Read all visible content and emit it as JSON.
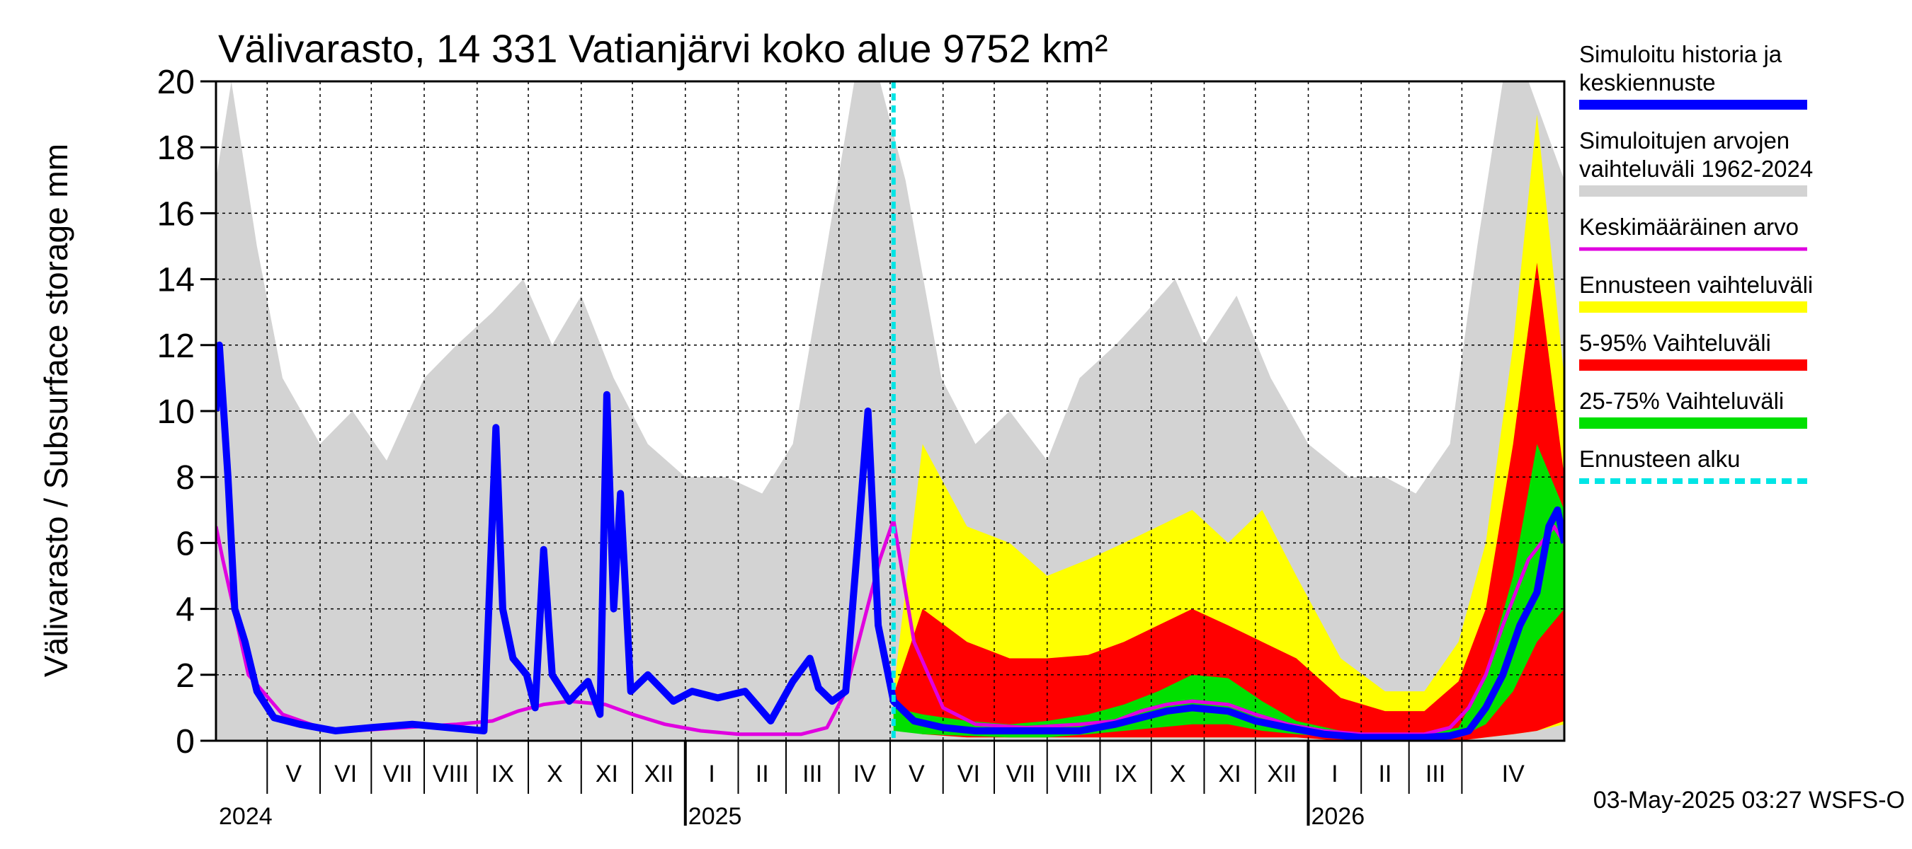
{
  "chart_data": {
    "type": "area",
    "title": "Välivarasto, 14 331 Vatianjärvi koko alue 9752 km²",
    "ylabel": "Välivarasto / Subsurface storage  mm",
    "xlabel": "",
    "ylim": [
      0,
      20
    ],
    "yticks": [
      "0",
      "2",
      "4",
      "6",
      "8",
      "10",
      "12",
      "14",
      "16",
      "18",
      "20"
    ],
    "xlim": [
      "2024-04-01",
      "2026-05-31"
    ],
    "grid": true,
    "legend_placement": "right",
    "forecast_start": "2025-05-03",
    "footer": "03-May-2025 03:27 WSFS-O",
    "months": [
      {
        "label": "V",
        "start": "2024-05-01"
      },
      {
        "label": "VI",
        "start": "2024-06-01"
      },
      {
        "label": "VII",
        "start": "2024-07-01"
      },
      {
        "label": "VIII",
        "start": "2024-08-01"
      },
      {
        "label": "IX",
        "start": "2024-09-01"
      },
      {
        "label": "X",
        "start": "2024-10-01"
      },
      {
        "label": "XI",
        "start": "2024-11-01"
      },
      {
        "label": "XII",
        "start": "2024-12-01"
      },
      {
        "label": "I",
        "start": "2025-01-01"
      },
      {
        "label": "II",
        "start": "2025-02-01"
      },
      {
        "label": "III",
        "start": "2025-03-01"
      },
      {
        "label": "IV",
        "start": "2025-04-01"
      },
      {
        "label": "V",
        "start": "2025-05-01"
      },
      {
        "label": "VI",
        "start": "2025-06-01"
      },
      {
        "label": "VII",
        "start": "2025-07-01"
      },
      {
        "label": "VIII",
        "start": "2025-08-01"
      },
      {
        "label": "IX",
        "start": "2025-09-01"
      },
      {
        "label": "X",
        "start": "2025-10-01"
      },
      {
        "label": "XI",
        "start": "2025-11-01"
      },
      {
        "label": "XII",
        "start": "2025-12-01"
      },
      {
        "label": "I",
        "start": "2026-01-01"
      },
      {
        "label": "II",
        "start": "2026-02-01"
      },
      {
        "label": "III",
        "start": "2026-03-01"
      },
      {
        "label": "IV",
        "start": "2026-04-01"
      }
    ],
    "years": [
      {
        "label": "2024",
        "start": "2024-04-01"
      },
      {
        "label": "2025",
        "start": "2025-01-01"
      },
      {
        "label": "2026",
        "start": "2026-01-01"
      }
    ],
    "legend": [
      {
        "label": "Simuloitu historia ja keskiennuste",
        "color": "#0000ff",
        "style": "line"
      },
      {
        "label": "Simuloitujen arvojen vaihteluväli 1962-2024",
        "color": "#d3d3d3",
        "style": "band"
      },
      {
        "label": "Keskimääräinen arvo",
        "color": "#e000e0",
        "style": "line"
      },
      {
        "label": "Ennusteen vaihteluväli",
        "color": "#ffff00",
        "style": "band"
      },
      {
        "label": "5-95% Vaihteluväli",
        "color": "#ff0000",
        "style": "band"
      },
      {
        "label": "25-75% Vaihteluväli",
        "color": "#00e000",
        "style": "band"
      },
      {
        "label": "Ennusteen alku",
        "color": "#00e5e5",
        "style": "dashed"
      }
    ],
    "series": [
      {
        "name": "Simuloitujen arvojen vaihteluväli 1962-2024",
        "color": "#d3d3d3",
        "x": [
          "2024-04-01",
          "2024-04-10",
          "2024-04-25",
          "2024-05-10",
          "2024-06-01",
          "2024-06-20",
          "2024-07-10",
          "2024-08-01",
          "2024-08-20",
          "2024-09-10",
          "2024-09-28",
          "2024-10-15",
          "2024-11-01",
          "2024-11-20",
          "2024-12-10",
          "2025-01-01",
          "2025-01-25",
          "2025-02-15",
          "2025-03-05",
          "2025-03-25",
          "2025-04-10",
          "2025-04-25",
          "2025-05-10",
          "2025-05-31",
          "2025-06-20",
          "2025-07-10",
          "2025-08-01",
          "2025-08-20",
          "2025-09-10",
          "2025-09-28",
          "2025-10-15",
          "2025-11-01",
          "2025-11-20",
          "2025-12-10",
          "2026-01-01",
          "2026-01-25",
          "2026-02-15",
          "2026-03-05",
          "2026-03-25",
          "2026-04-10",
          "2026-04-25",
          "2026-05-10",
          "2026-05-31"
        ],
        "lower": [
          0,
          0,
          0,
          0,
          0,
          0,
          0,
          0,
          0,
          0,
          0,
          0,
          0,
          0,
          0,
          0,
          0,
          0,
          0,
          0,
          0,
          0,
          0,
          0,
          0,
          0,
          0,
          0,
          0,
          0,
          0,
          0,
          0,
          0,
          0,
          0,
          0,
          0,
          0,
          0,
          0,
          0,
          0
        ],
        "upper": [
          17,
          20,
          15,
          11,
          9,
          10,
          8.5,
          11,
          12,
          13,
          14,
          12,
          13.5,
          11,
          9,
          8,
          8,
          7.5,
          9,
          15,
          20,
          20,
          17,
          11,
          9,
          10,
          8.5,
          11,
          12,
          13,
          14,
          12,
          13.5,
          11,
          9,
          8,
          8,
          7.5,
          9,
          15,
          20,
          20,
          17
        ]
      },
      {
        "name": "Ennusteen vaihteluväli",
        "color": "#ffff00",
        "x": [
          "2025-05-03",
          "2025-05-20",
          "2025-06-15",
          "2025-07-10",
          "2025-08-01",
          "2025-08-25",
          "2025-09-15",
          "2025-10-05",
          "2025-10-25",
          "2025-11-15",
          "2025-12-05",
          "2025-12-25",
          "2026-01-20",
          "2026-02-15",
          "2026-03-10",
          "2026-03-30",
          "2026-04-15",
          "2026-05-01",
          "2026-05-15",
          "2026-05-31"
        ],
        "lower": [
          0.4,
          0.2,
          0.1,
          0.1,
          0.1,
          0.1,
          0.1,
          0.1,
          0.1,
          0.1,
          0.1,
          0.1,
          0,
          0,
          0,
          0,
          0.1,
          0.2,
          0.3,
          0.5
        ],
        "upper": [
          1.5,
          9,
          6.5,
          6,
          5,
          5.5,
          6,
          6.5,
          7,
          6,
          7,
          5,
          2.5,
          1.5,
          1.5,
          3,
          6,
          12,
          19,
          11
        ]
      },
      {
        "name": "5-95% Vaihteluväli",
        "color": "#ff0000",
        "x": [
          "2025-05-03",
          "2025-05-20",
          "2025-06-15",
          "2025-07-10",
          "2025-08-01",
          "2025-08-25",
          "2025-09-15",
          "2025-10-05",
          "2025-10-25",
          "2025-11-15",
          "2025-12-05",
          "2025-12-25",
          "2026-01-20",
          "2026-02-15",
          "2026-03-10",
          "2026-03-30",
          "2026-04-15",
          "2026-05-01",
          "2026-05-15",
          "2026-05-31"
        ],
        "lower": [
          0.4,
          0.2,
          0.1,
          0.1,
          0.1,
          0.1,
          0.1,
          0.1,
          0.1,
          0.1,
          0.1,
          0.1,
          0,
          0,
          0,
          0,
          0.1,
          0.2,
          0.3,
          0.6
        ],
        "upper": [
          1.4,
          4,
          3,
          2.5,
          2.5,
          2.6,
          3,
          3.5,
          4,
          3.5,
          3,
          2.5,
          1.3,
          0.9,
          0.9,
          1.8,
          4,
          9,
          14.5,
          8
        ]
      },
      {
        "name": "25-75% Vaihteluväli",
        "color": "#00e000",
        "x": [
          "2025-05-03",
          "2025-05-20",
          "2025-06-15",
          "2025-07-10",
          "2025-08-01",
          "2025-08-25",
          "2025-09-15",
          "2025-10-05",
          "2025-10-25",
          "2025-11-15",
          "2025-12-05",
          "2025-12-25",
          "2026-01-20",
          "2026-02-15",
          "2026-03-10",
          "2026-03-30",
          "2026-04-15",
          "2026-05-01",
          "2026-05-15",
          "2026-05-31"
        ],
        "lower": [
          0.3,
          0.2,
          0.15,
          0.1,
          0.1,
          0.2,
          0.3,
          0.4,
          0.5,
          0.5,
          0.3,
          0.2,
          0.1,
          0.05,
          0.05,
          0.1,
          0.5,
          1.5,
          3,
          4
        ],
        "upper": [
          1.0,
          0.8,
          0.6,
          0.5,
          0.6,
          0.8,
          1.1,
          1.5,
          2.0,
          1.9,
          1.2,
          0.6,
          0.3,
          0.2,
          0.2,
          0.4,
          2,
          5,
          9,
          7
        ]
      },
      {
        "name": "Keskimääräinen arvo",
        "color": "#e000e0",
        "x": [
          "2024-04-01",
          "2024-04-05",
          "2024-04-20",
          "2024-05-10",
          "2024-06-01",
          "2024-06-20",
          "2024-07-20",
          "2024-08-20",
          "2024-09-10",
          "2024-09-25",
          "2024-10-10",
          "2024-10-25",
          "2024-11-15",
          "2024-12-01",
          "2024-12-20",
          "2025-01-10",
          "2025-02-01",
          "2025-02-20",
          "2025-03-10",
          "2025-03-25",
          "2025-04-05",
          "2025-04-15",
          "2025-04-25",
          "2025-05-03",
          "2025-05-15",
          "2025-06-01",
          "2025-06-20",
          "2025-07-20",
          "2025-08-20",
          "2025-09-10",
          "2025-09-25",
          "2025-10-10",
          "2025-10-25",
          "2025-11-15",
          "2025-12-01",
          "2025-12-20",
          "2026-01-10",
          "2026-02-01",
          "2026-02-20",
          "2026-03-10",
          "2026-03-25",
          "2026-04-05",
          "2026-04-15",
          "2026-04-25",
          "2026-05-10",
          "2026-05-25",
          "2026-05-31"
        ],
        "y": [
          6.5,
          5.5,
          2.0,
          0.8,
          0.4,
          0.3,
          0.4,
          0.5,
          0.6,
          0.9,
          1.1,
          1.2,
          1.1,
          0.8,
          0.5,
          0.3,
          0.2,
          0.2,
          0.2,
          0.4,
          1.5,
          3.5,
          5.5,
          6.7,
          3.0,
          1.0,
          0.5,
          0.4,
          0.5,
          0.6,
          0.9,
          1.1,
          1.2,
          1.1,
          0.8,
          0.5,
          0.3,
          0.2,
          0.2,
          0.2,
          0.4,
          1.0,
          2.0,
          3.5,
          5.5,
          6.5,
          6.0
        ]
      },
      {
        "name": "Simuloitu historia ja keskiennuste",
        "color": "#0000ff",
        "x": [
          "2024-04-01",
          "2024-04-03",
          "2024-04-08",
          "2024-04-12",
          "2024-04-18",
          "2024-04-25",
          "2024-05-05",
          "2024-05-20",
          "2024-06-10",
          "2024-07-01",
          "2024-07-25",
          "2024-08-15",
          "2024-09-05",
          "2024-09-12",
          "2024-09-16",
          "2024-09-22",
          "2024-09-30",
          "2024-10-05",
          "2024-10-10",
          "2024-10-15",
          "2024-10-25",
          "2024-11-05",
          "2024-11-12",
          "2024-11-16",
          "2024-11-20",
          "2024-11-24",
          "2024-11-30",
          "2024-12-10",
          "2024-12-25",
          "2025-01-05",
          "2025-01-20",
          "2025-02-05",
          "2025-02-20",
          "2025-03-05",
          "2025-03-15",
          "2025-03-20",
          "2025-03-28",
          "2025-04-05",
          "2025-04-12",
          "2025-04-18",
          "2025-04-24",
          "2025-05-03",
          "2025-05-15",
          "2025-06-01",
          "2025-06-20",
          "2025-07-20",
          "2025-08-20",
          "2025-09-10",
          "2025-09-25",
          "2025-10-10",
          "2025-10-25",
          "2025-11-15",
          "2025-12-01",
          "2025-12-20",
          "2026-01-10",
          "2026-02-01",
          "2026-02-20",
          "2026-03-10",
          "2026-03-25",
          "2026-04-05",
          "2026-04-15",
          "2026-04-25",
          "2026-05-05",
          "2026-05-15",
          "2026-05-22",
          "2026-05-27",
          "2026-05-31"
        ],
        "y": [
          10,
          12,
          8,
          4,
          3,
          1.5,
          0.7,
          0.5,
          0.3,
          0.4,
          0.5,
          0.4,
          0.3,
          9.5,
          4,
          2.5,
          2,
          1,
          5.8,
          2,
          1.2,
          1.8,
          0.8,
          10.5,
          4,
          7.5,
          1.5,
          2,
          1.2,
          1.5,
          1.3,
          1.5,
          0.6,
          1.8,
          2.5,
          1.6,
          1.2,
          1.5,
          6,
          10,
          3.5,
          1.2,
          0.6,
          0.4,
          0.3,
          0.3,
          0.3,
          0.5,
          0.7,
          0.9,
          1.0,
          0.9,
          0.6,
          0.4,
          0.2,
          0.1,
          0.1,
          0.1,
          0.15,
          0.3,
          1.0,
          2.0,
          3.5,
          4.5,
          6.5,
          7.0,
          6.0
        ]
      }
    ]
  }
}
